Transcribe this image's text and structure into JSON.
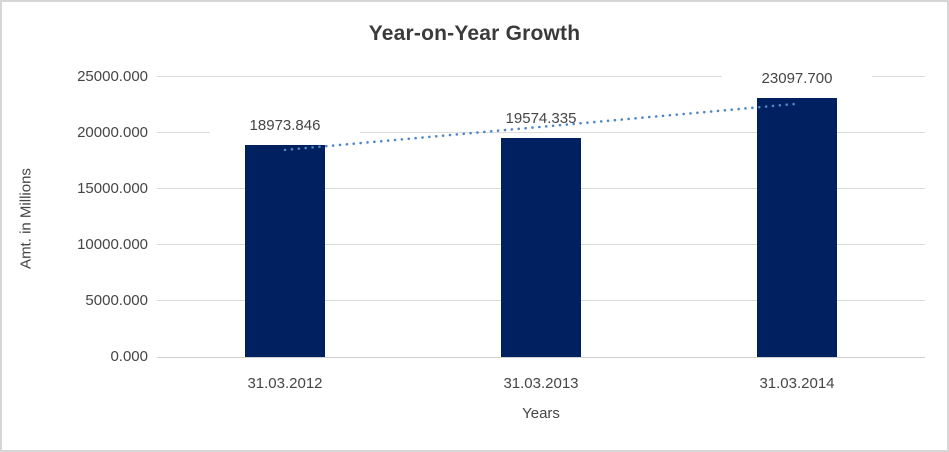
{
  "chart_data": {
    "type": "bar",
    "title": "Year-on-Year Growth",
    "xlabel": "Years",
    "ylabel": "Amt. in Millions",
    "categories": [
      "31.03.2012",
      "31.03.2013",
      "31.03.2014"
    ],
    "values": [
      18973.846,
      19574.335,
      23097.7
    ],
    "data_labels": [
      "18973.846",
      "19574.335",
      "23097.700"
    ],
    "ylim": [
      0,
      25000
    ],
    "ytick_values": [
      0,
      5000,
      10000,
      15000,
      20000,
      25000
    ],
    "ytick_labels": [
      "0.000",
      "5000.000",
      "10000.000",
      "15000.000",
      "20000.000",
      "25000.000"
    ],
    "grid": true,
    "legend": "none",
    "trendline": {
      "kind": "linear-dotted",
      "start_value": 18486.7,
      "end_value": 22610.6,
      "color": "#4f86c6"
    },
    "colors": {
      "bar": "#012060",
      "gridline": "#dcdcdc",
      "axis_line": "#cfcfcf",
      "text": "#454545",
      "title_text": "#3a3a3a",
      "border": "#d6d6d6",
      "background": "#ffffff"
    }
  }
}
